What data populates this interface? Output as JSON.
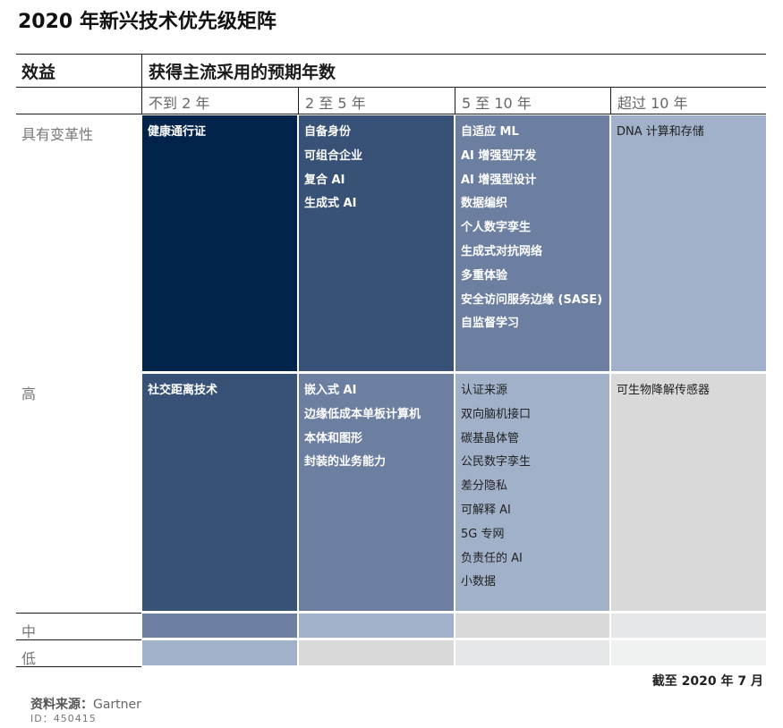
{
  "title": "2020 年新兴技术优先级矩阵",
  "header": {
    "benefit": "效益",
    "adoption": "获得主流采用的预期年数"
  },
  "columns": [
    "不到 2 年",
    "2 至 5 年",
    "5 至 10 年",
    "超过 10 年"
  ],
  "rows": [
    "具有变革性",
    "高",
    "中",
    "低"
  ],
  "cells": {
    "transformational": [
      [
        "健康通行证"
      ],
      [
        "自备身份",
        "可组合企业",
        "复合 AI",
        "生成式 AI"
      ],
      [
        "自适应 ML",
        "AI 增强型开发",
        "AI 增强型设计",
        "数据编织",
        "个人数字孪生",
        "生成式对抗网络",
        "多重体验",
        "安全访问服务边缘 (SASE)",
        "自监督学习"
      ],
      [
        "DNA 计算和存储"
      ]
    ],
    "high": [
      [
        "社交距离技术"
      ],
      [
        "嵌入式 AI",
        "边缘低成本单板计算机",
        "本体和图形",
        "封装的业务能力"
      ],
      [
        "认证来源",
        "双向脑机接口",
        "碳基晶体管",
        "公民数字孪生",
        "差分隐私",
        "可解释 AI",
        "5G 专网",
        "负责任的 AI",
        "小数据"
      ],
      [
        "可生物降解传感器"
      ]
    ]
  },
  "colors": {
    "navy": "#03244a",
    "dark_slate": "#375276",
    "mid_slate": "#6c7fa0",
    "light_slate": "#a0b1c9",
    "light_gray": "#d9d9d9",
    "lighter_gray": "#e6e7e9",
    "lightest_gray": "#f0f1f1"
  },
  "footer": {
    "as_of": "截至 2020 年 7 月",
    "source_label": "资料来源：",
    "source_value": "Gartner",
    "id": "ID：450415"
  }
}
